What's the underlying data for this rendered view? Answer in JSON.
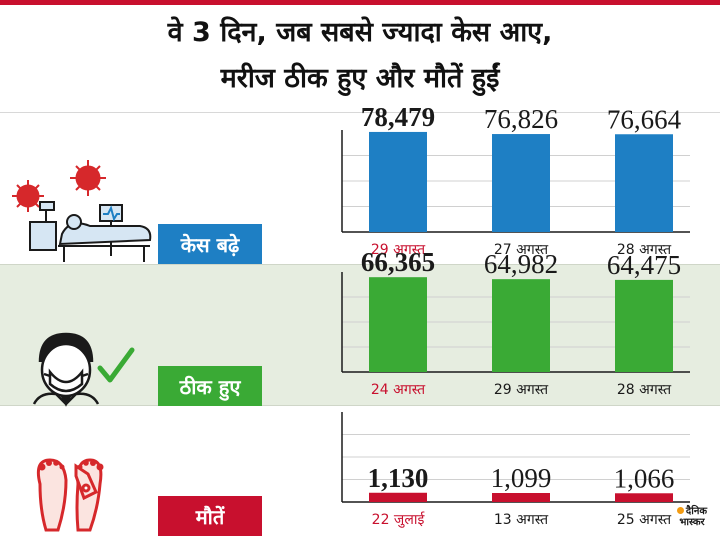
{
  "title": {
    "line1": "वे 3 दिन, जब सबसे ज्यादा केस आए,",
    "line2": "मरीज ठीक हुए और मौतें हुईं"
  },
  "colors": {
    "blue": "#1e7fc4",
    "green": "#3aaa35",
    "red": "#c8102e"
  },
  "icons": [
    "virus-icon",
    "hospital-bed-icon",
    "masked-person-icon",
    "check-icon",
    "feet-toe-tag-icon"
  ],
  "logo": {
    "line1": "दैनिक",
    "line2": "भास्कर"
  },
  "chart_data": [
    {
      "type": "bar",
      "label": "केस बढ़े",
      "color": "#1e7fc4",
      "categories": [
        "29 अगस्त",
        "27 अगस्त",
        "28 अगस्त"
      ],
      "values": [
        78479,
        76826,
        76664
      ],
      "value_labels": [
        "78,479",
        "76,826",
        "76,664"
      ],
      "ylim": [
        0,
        80000
      ],
      "grid": true
    },
    {
      "type": "bar",
      "label": "ठीक हुए",
      "color": "#3aaa35",
      "categories": [
        "24 अगस्त",
        "29 अगस्त",
        "28 अगस्त"
      ],
      "values": [
        66365,
        64982,
        64475
      ],
      "value_labels": [
        "66,365",
        "64,982",
        "64,475"
      ],
      "ylim": [
        0,
        70000
      ],
      "grid": true
    },
    {
      "type": "bar",
      "label": "मौतें",
      "color": "#c8102e",
      "categories": [
        "22 जुलाई",
        "13 अगस्त",
        "25 अगस्त"
      ],
      "values": [
        1130,
        1099,
        1066
      ],
      "value_labels": [
        "1,130",
        "1,099",
        "1,066"
      ],
      "ylim": [
        0,
        11000
      ],
      "grid": true
    }
  ]
}
